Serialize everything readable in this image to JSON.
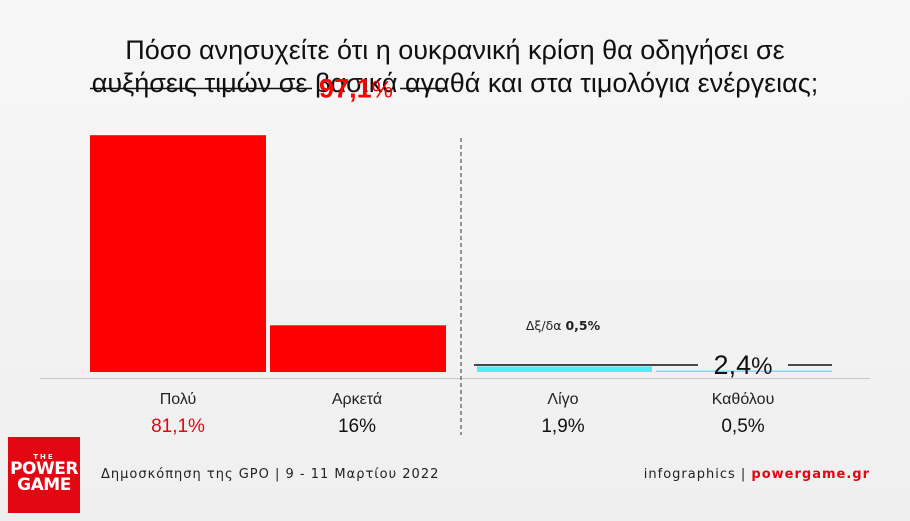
{
  "title_line1": "Πόσο ανησυχείτε ότι η ουκρανική κρίση θα οδηγήσει σε",
  "title_line2": "αυξήσεις τιμών σε βασικά αγαθά και στα τιμολόγια ενέργειας;",
  "chart_data": {
    "type": "bar",
    "categories": [
      "Πολύ",
      "Αρκετά",
      "Λίγο",
      "Καθόλου"
    ],
    "values": [
      81.1,
      16,
      1.9,
      0.5
    ],
    "value_labels": [
      "81,1%",
      "16%",
      "1,9%",
      "0,5%"
    ],
    "groups": [
      {
        "total": 97.1,
        "label_number": "97,1",
        "label_unit": "%",
        "color": "#ff0000"
      },
      {
        "total": 2.4,
        "label_number": "2,4",
        "label_unit": "%",
        "color": "#111111"
      }
    ],
    "annotation": {
      "prefix": "Δξ/δα",
      "value": "0,5%"
    },
    "colors": [
      "#ff0000",
      "#ff0000",
      "#4df0f4",
      "#4df0f4"
    ],
    "value_label_colors": [
      "#e30613",
      "#111111",
      "#111111",
      "#111111"
    ],
    "ylim": [
      0,
      100
    ]
  },
  "footer": {
    "source": "Δημοσκόπηση της GPO | 9 - 11 Μαρτίου 2022",
    "credit_prefix": "infographics | ",
    "credit_site": "powergame.gr"
  },
  "logo": {
    "the": "THE",
    "line1": "POWER",
    "line2": "GAME"
  }
}
